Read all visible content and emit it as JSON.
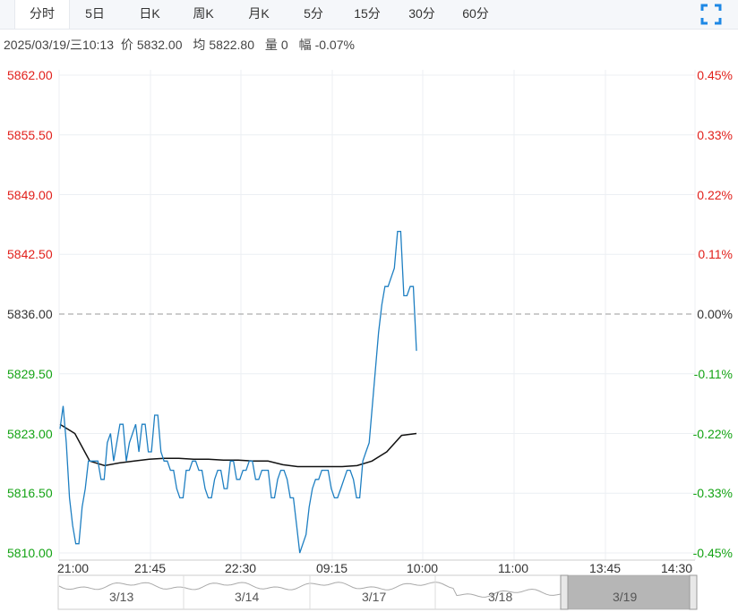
{
  "tabs": [
    {
      "label": "分时",
      "active": true
    },
    {
      "label": "5日"
    },
    {
      "label": "日K"
    },
    {
      "label": "周K"
    },
    {
      "label": "月K"
    },
    {
      "label": "5分"
    },
    {
      "label": "15分"
    },
    {
      "label": "30分"
    },
    {
      "label": "60分"
    }
  ],
  "info": {
    "datetime": "2025/03/19/三10:13",
    "price_label": "价",
    "price": "5832.00",
    "avg_label": "均",
    "avg": "5822.80",
    "vol_label": "量",
    "vol": "0",
    "chg_label": "幅",
    "chg": "-0.07%"
  },
  "colors": {
    "up": "#e1201b",
    "down": "#14a314",
    "price_line": "#1e7fc2",
    "avg_line": "#111111",
    "grid": "#eceff3"
  },
  "icons": {
    "fullscreen": "expand-corners-icon"
  },
  "chart_data": {
    "type": "line",
    "y_labels_left": [
      "5862.00",
      "5855.50",
      "5849.00",
      "5842.50",
      "5836.00",
      "5829.50",
      "5823.00",
      "5816.50",
      "5810.00"
    ],
    "y_labels_right": [
      "0.45%",
      "0.33%",
      "0.22%",
      "0.11%",
      "0.00%",
      "-0.11%",
      "-0.22%",
      "-0.33%",
      "-0.45%"
    ],
    "ylim": [
      5810.0,
      5862.0
    ],
    "base": 5836.0,
    "x_labels": [
      "21:00",
      "21:45",
      "22:30",
      "09:15",
      "10:00",
      "11:00",
      "13:45",
      "14:30"
    ],
    "series": [
      {
        "values": [
          5823.5,
          5826,
          5822,
          5816,
          5813,
          5811,
          5811,
          5815,
          5817,
          5820,
          5820,
          5820,
          5820,
          5818,
          5818,
          5822,
          5823,
          5820,
          5822,
          5824,
          5824,
          5820,
          5822,
          5823,
          5824,
          5821,
          5824,
          5824,
          5821,
          5821,
          5825,
          5825,
          5821,
          5820,
          5820,
          5819,
          5819,
          5817,
          5816,
          5816,
          5819,
          5819,
          5820,
          5820,
          5819,
          5819,
          5817,
          5816,
          5816,
          5818,
          5819,
          5819,
          5817,
          5817,
          5820,
          5820,
          5818,
          5818,
          5819,
          5819,
          5820,
          5820,
          5818,
          5818,
          5819,
          5819,
          5819,
          5816,
          5816,
          5818,
          5819,
          5819,
          5818,
          5816,
          5816,
          5813,
          5810,
          5811,
          5812,
          5815,
          5817,
          5818,
          5818,
          5819,
          5819,
          5819,
          5817,
          5816,
          5816,
          5817,
          5818,
          5819,
          5819,
          5818,
          5816,
          5816,
          5820,
          5821,
          5822,
          5826,
          5830,
          5834,
          5837,
          5839,
          5839,
          5840,
          5841,
          5845,
          5845,
          5838,
          5838,
          5839,
          5839,
          5832
        ]
      },
      {
        "values": [
          5824,
          5823,
          5820,
          5819.5,
          5819.8,
          5820,
          5820.2,
          5820.3,
          5820.3,
          5820.2,
          5820.2,
          5820.1,
          5820.1,
          5820,
          5820,
          5819.6,
          5819.4,
          5819.4,
          5819.4,
          5819.4,
          5819.5,
          5820,
          5821,
          5822.8,
          5823
        ]
      }
    ]
  },
  "navigator": {
    "dates": [
      "3/13",
      "3/14",
      "3/17",
      "3/18",
      "3/19"
    ]
  }
}
